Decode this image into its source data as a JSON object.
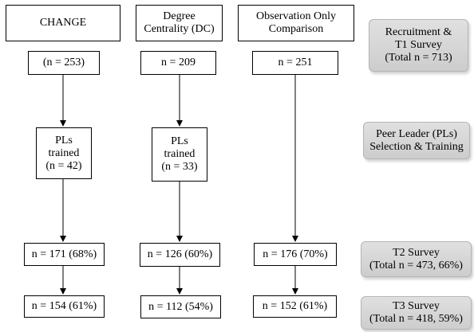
{
  "arms": [
    {
      "name": "CHANGE",
      "recruited": "(n = 253)",
      "peer_leaders": "PLs\ntrained\n(n = 42)",
      "t2": "n = 171 (68%)",
      "t3": "n = 154 (61%)"
    },
    {
      "name": "Degree\nCentrality (DC)",
      "recruited": "n = 209",
      "peer_leaders": "PLs\ntrained\n(n = 33)",
      "t2": "n = 126 (60%)",
      "t3": "n = 112 (54%)"
    },
    {
      "name": "Observation Only\nComparison",
      "recruited": "n = 251",
      "t2": "n = 176 (70%)",
      "t3": "n = 152 (61%)"
    }
  ],
  "stages": [
    {
      "label": "Recruitment &\nT1 Survey\n(Total n = 713)"
    },
    {
      "label": "Peer Leader (PLs)\nSelection & Training"
    },
    {
      "label": "T2 Survey\n(Total n = 473, 66%)"
    },
    {
      "label": "T3 Survey\n(Total n = 418, 59%)"
    }
  ],
  "colors": {
    "stage_fill": "#d4d4d4",
    "stage_border": "#b5b5b5",
    "line": "#000000"
  }
}
